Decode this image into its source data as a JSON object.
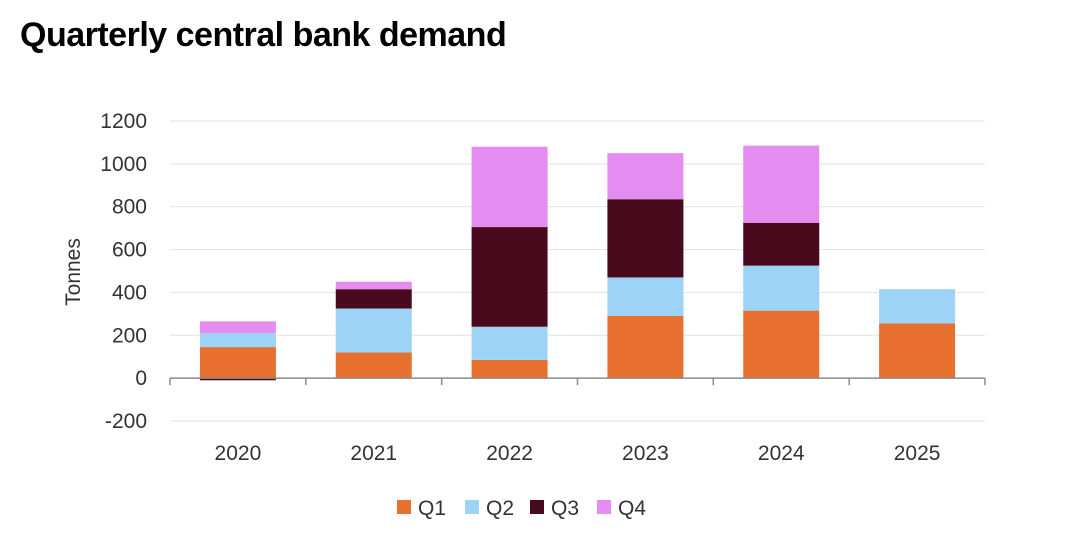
{
  "chart_data": {
    "type": "bar",
    "stacked": true,
    "title": "Quarterly central bank demand",
    "xlabel": "",
    "ylabel": "Tonnes",
    "ylim": [
      -200,
      1200
    ],
    "yticks": [
      1200,
      1000,
      800,
      600,
      400,
      200,
      0,
      -200
    ],
    "categories": [
      "2020",
      "2021",
      "2022",
      "2023",
      "2024",
      "2025"
    ],
    "grid": true,
    "legend_position": "bottom",
    "series": [
      {
        "name": "Q1",
        "color": "#E8702F",
        "values": [
          145,
          120,
          85,
          290,
          315,
          255
        ]
      },
      {
        "name": "Q2",
        "color": "#9DD3F7",
        "values": [
          65,
          205,
          155,
          180,
          210,
          160
        ]
      },
      {
        "name": "Q3",
        "color": "#4A0A1E",
        "values": [
          -10,
          90,
          465,
          365,
          200,
          0
        ]
      },
      {
        "name": "Q4",
        "color": "#E48CF0",
        "values": [
          55,
          35,
          375,
          215,
          360,
          0
        ]
      }
    ]
  }
}
